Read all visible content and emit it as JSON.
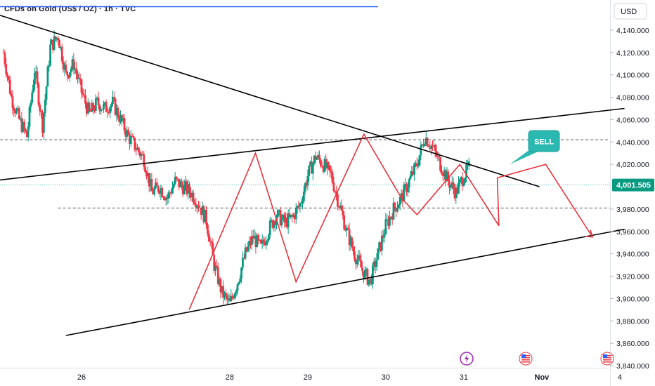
{
  "header": {
    "symbol_title": "CFDs on Gold (US$ / OZ) · 1h · TVC"
  },
  "price_axis": {
    "currency_label": "USD",
    "current_price_label": "4,001.505"
  },
  "annotations": {
    "sell_label": "SELL"
  },
  "colors": {
    "up": "#089981",
    "down": "#f23645",
    "current_price": "#089981",
    "pattern": "#e8333c",
    "callout": "#2bb8b1",
    "trendline": "#000000"
  },
  "chart_data": {
    "type": "candlestick",
    "title": "CFDs on Gold (US$ / OZ) · 1h · TVC",
    "ylim": [
      3840,
      4150
    ],
    "y_ticks": [
      {
        "value": 4140,
        "label": "4,140.000"
      },
      {
        "value": 4120,
        "label": "4,120.000"
      },
      {
        "value": 4100,
        "label": "4,100.000"
      },
      {
        "value": 4080,
        "label": "4,080.000"
      },
      {
        "value": 4060,
        "label": "4,060.000"
      },
      {
        "value": 4040,
        "label": "4,040.000"
      },
      {
        "value": 4020,
        "label": "4,020.000"
      },
      {
        "value": 3980,
        "label": "3,980.000"
      },
      {
        "value": 3960,
        "label": "3,960.000"
      },
      {
        "value": 3940,
        "label": "3,940.000"
      },
      {
        "value": 3920,
        "label": "3,920.000"
      },
      {
        "value": 3900,
        "label": "3,900.000"
      },
      {
        "value": 3880,
        "label": "3,880.000"
      },
      {
        "value": 3860,
        "label": "3,860.000"
      },
      {
        "value": 3840,
        "label": "3,840.000"
      }
    ],
    "x_ticks": [
      {
        "pos": 10,
        "label": "26",
        "bold": false
      },
      {
        "pos": 29,
        "label": "28",
        "bold": false
      },
      {
        "pos": 39,
        "label": "29",
        "bold": false
      },
      {
        "pos": 49,
        "label": "30",
        "bold": false
      },
      {
        "pos": 59,
        "label": "31",
        "bold": false
      },
      {
        "pos": 69,
        "label": "Nov",
        "bold": true
      },
      {
        "pos": 79,
        "label": "4",
        "bold": false
      }
    ],
    "candle_anchors": [
      [
        0,
        4120
      ],
      [
        1,
        4080
      ],
      [
        2,
        4060
      ],
      [
        3,
        4045
      ],
      [
        4,
        4105
      ],
      [
        5,
        4055
      ],
      [
        6,
        4125
      ],
      [
        7,
        4135
      ],
      [
        8,
        4100
      ],
      [
        9,
        4110
      ],
      [
        10,
        4085
      ],
      [
        11,
        4065
      ],
      [
        12,
        4075
      ],
      [
        13,
        4070
      ],
      [
        14,
        4075
      ],
      [
        15,
        4060
      ],
      [
        16,
        4045
      ],
      [
        17,
        4035
      ],
      [
        18,
        4025
      ],
      [
        19,
        3995
      ],
      [
        20,
        4000
      ],
      [
        21,
        3990
      ],
      [
        22,
        4005
      ],
      [
        23,
        4000
      ],
      [
        24,
        3995
      ],
      [
        25,
        3985
      ],
      [
        26,
        3970
      ],
      [
        27,
        3930
      ],
      [
        28,
        3905
      ],
      [
        29,
        3895
      ],
      [
        30,
        3915
      ],
      [
        31,
        3940
      ],
      [
        32,
        3955
      ],
      [
        33,
        3945
      ],
      [
        34,
        3962
      ],
      [
        35,
        3975
      ],
      [
        36,
        3968
      ],
      [
        37,
        3972
      ],
      [
        38,
        3984
      ],
      [
        39,
        4010
      ],
      [
        40,
        4027
      ],
      [
        41,
        4020
      ],
      [
        42,
        4010
      ],
      [
        43,
        3985
      ],
      [
        44,
        3960
      ],
      [
        45,
        3940
      ],
      [
        46,
        3925
      ],
      [
        47,
        3915
      ],
      [
        48,
        3940
      ],
      [
        49,
        3965
      ],
      [
        50,
        3980
      ],
      [
        51,
        3990
      ],
      [
        52,
        4005
      ],
      [
        53,
        4020
      ],
      [
        54,
        4045
      ],
      [
        55,
        4035
      ],
      [
        56,
        4020
      ],
      [
        57,
        4005
      ],
      [
        58,
        3995
      ],
      [
        59,
        4010
      ],
      [
        60,
        4020
      ],
      [
        61,
        4010
      ],
      [
        62,
        4015
      ],
      [
        63,
        4030
      ],
      [
        64,
        4015
      ],
      [
        65,
        4010
      ],
      [
        66,
        3985
      ],
      [
        67,
        3998
      ],
      [
        68,
        4002
      ],
      [
        69,
        4001.5
      ]
    ],
    "trendlines": [
      {
        "name": "descending-resistance",
        "from": [
          -8,
          4170
        ],
        "to": [
          68.7,
          4000
        ]
      },
      {
        "name": "ascending-upper",
        "from": [
          -8,
          4000
        ],
        "to": [
          79.6,
          4070
        ]
      },
      {
        "name": "ascending-support",
        "from": [
          8,
          3867
        ],
        "to": [
          79.6,
          3962
        ]
      }
    ],
    "horizontal_levels": [
      {
        "name": "resistance",
        "value": 4042,
        "from": -8,
        "to": 79.6
      },
      {
        "name": "neckline",
        "value": 3981,
        "from": 7,
        "to": 79.6
      },
      {
        "name": "current-price",
        "value": 4001.5,
        "from": -8,
        "to": 79.6
      }
    ],
    "zigzag_pattern": [
      [
        23.8,
        3890
      ],
      [
        32.3,
        4030
      ],
      [
        37.5,
        3915
      ],
      [
        46.2,
        4047
      ],
      [
        51,
        3990
      ],
      [
        53,
        3975
      ],
      [
        58.5,
        4020
      ],
      [
        63.5,
        3965
      ]
    ],
    "sell_callout_point": [
      59.5,
      4020
    ],
    "event_markers": [
      {
        "type": "lightning",
        "pos": 69
      },
      {
        "type": "us-flag",
        "pos": 79
      },
      {
        "type": "us-flag",
        "pos": 89
      }
    ]
  }
}
